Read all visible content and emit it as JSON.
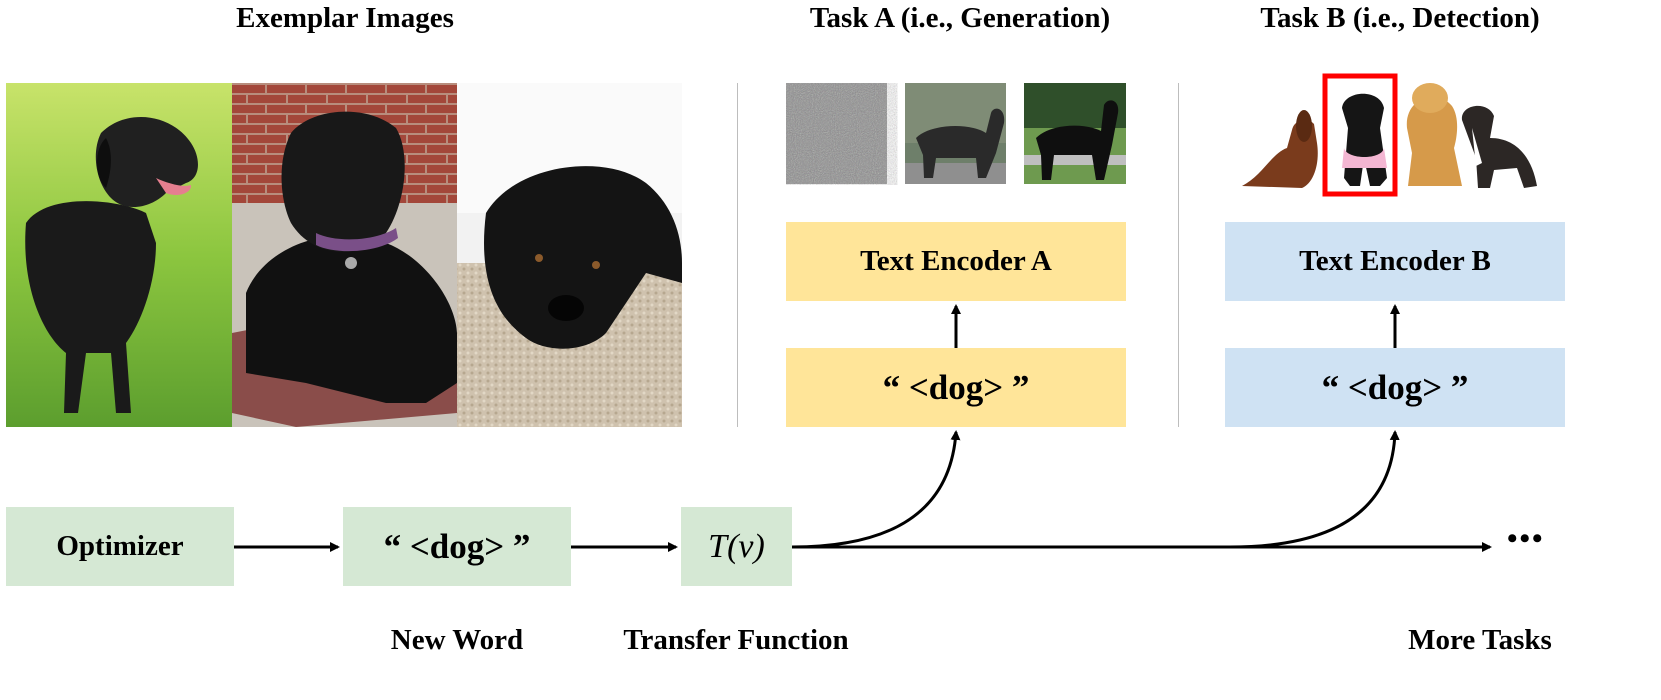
{
  "headings": {
    "exemplar": "Exemplar Images",
    "task_a": "Task A (i.e., Generation)",
    "task_b": "Task B (i.e., Detection)"
  },
  "boxes": {
    "text_encoder_a": "Text Encoder A",
    "text_encoder_b": "Text Encoder B",
    "token_a": "“ <dog> ”",
    "token_b": "“ <dog> ”",
    "optimizer": "Optimizer",
    "new_word_token": "“ <dog> ”",
    "transfer_fn": "T(v)"
  },
  "labels": {
    "new_word": "New Word",
    "transfer_function": "Transfer Function",
    "more_tasks": "More Tasks"
  },
  "ellipsis": "•••",
  "colors": {
    "green": "#d5e8d4",
    "yellow": "#ffe599",
    "blue": "#cfe2f3",
    "detection_box": "#ff0000"
  },
  "icons": [
    "black-labrador-photo",
    "noise-image",
    "denoising-image",
    "generated-dog-image",
    "dachshund",
    "black-dog",
    "golden-retriever",
    "pitbull-dog"
  ]
}
